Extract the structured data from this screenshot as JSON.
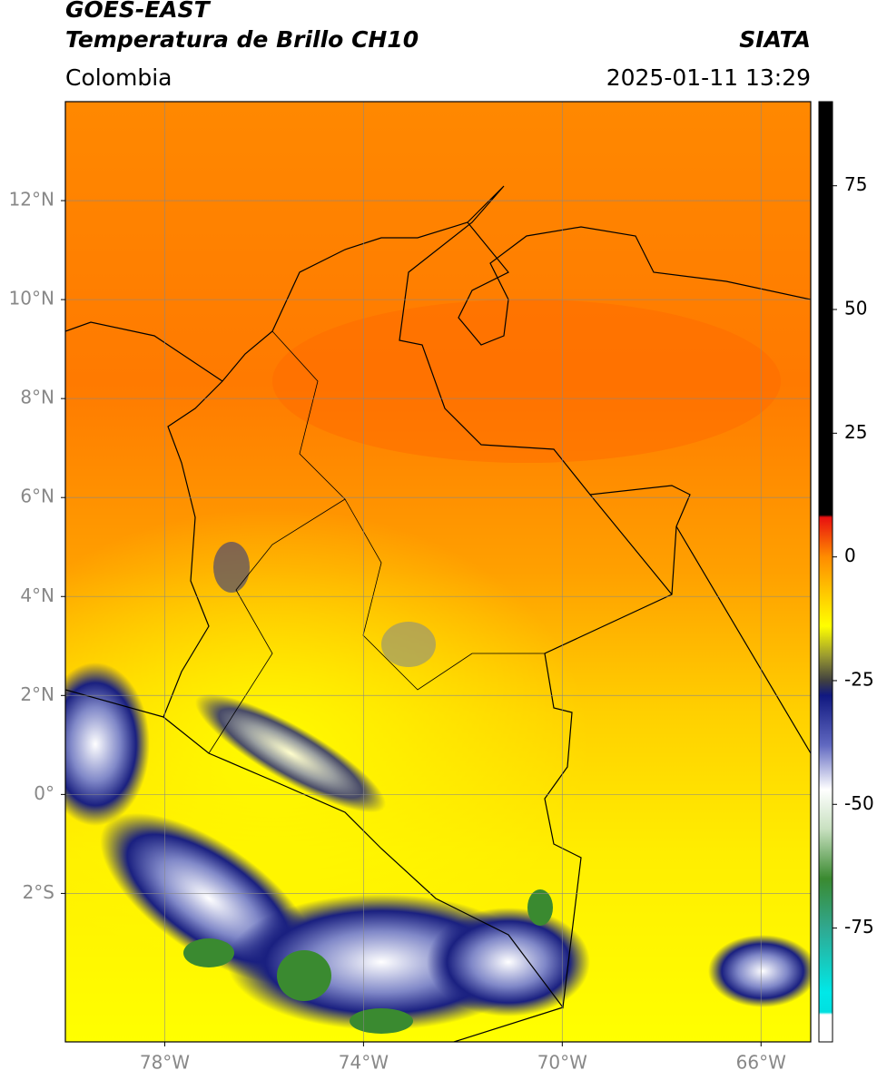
{
  "chart_data": {
    "type": "map",
    "title": "GOES-EAST",
    "subtitle": "Temperatura de Brillo CH10",
    "source": "SIATA",
    "region": "Colombia",
    "date": "2025-01-11 13:29",
    "xlim": [
      -80,
      -65
    ],
    "ylim": [
      -5,
      14
    ],
    "xticks": [
      {
        "value": -78,
        "label": "78°W"
      },
      {
        "value": -74,
        "label": "74°W"
      },
      {
        "value": -70,
        "label": "70°W"
      },
      {
        "value": -66,
        "label": "66°W"
      }
    ],
    "yticks": [
      {
        "value": 12,
        "label": "12°N"
      },
      {
        "value": 10,
        "label": "10°N"
      },
      {
        "value": 8,
        "label": "8°N"
      },
      {
        "value": 6,
        "label": "6°N"
      },
      {
        "value": 4,
        "label": "4°N"
      },
      {
        "value": 2,
        "label": "2°N"
      },
      {
        "value": 0,
        "label": "0°"
      },
      {
        "value": -2,
        "label": "2°S"
      }
    ],
    "grid": true,
    "colorbar": {
      "lim": [
        -98,
        92
      ],
      "ticks": [
        75,
        50,
        25,
        0,
        -25,
        -50,
        -75
      ],
      "colormap": [
        [
          92,
          "#000000"
        ],
        [
          8.5,
          "#000000"
        ],
        [
          8,
          "#e81010"
        ],
        [
          0,
          "#ff8c00"
        ],
        [
          -14,
          "#ffff00"
        ],
        [
          -20,
          "#9a9a30"
        ],
        [
          -25,
          "#404040"
        ],
        [
          -28,
          "#101880"
        ],
        [
          -38,
          "#6068c0"
        ],
        [
          -47,
          "#ffffff"
        ],
        [
          -55,
          "#c8e0c0"
        ],
        [
          -65,
          "#3a8a30"
        ],
        [
          -75,
          "#30a890"
        ],
        [
          -88,
          "#00e8e8"
        ],
        [
          -92,
          "#00e0e0"
        ],
        [
          -92.5,
          "#ffffff"
        ],
        [
          -98,
          "#ffffff"
        ]
      ]
    }
  }
}
